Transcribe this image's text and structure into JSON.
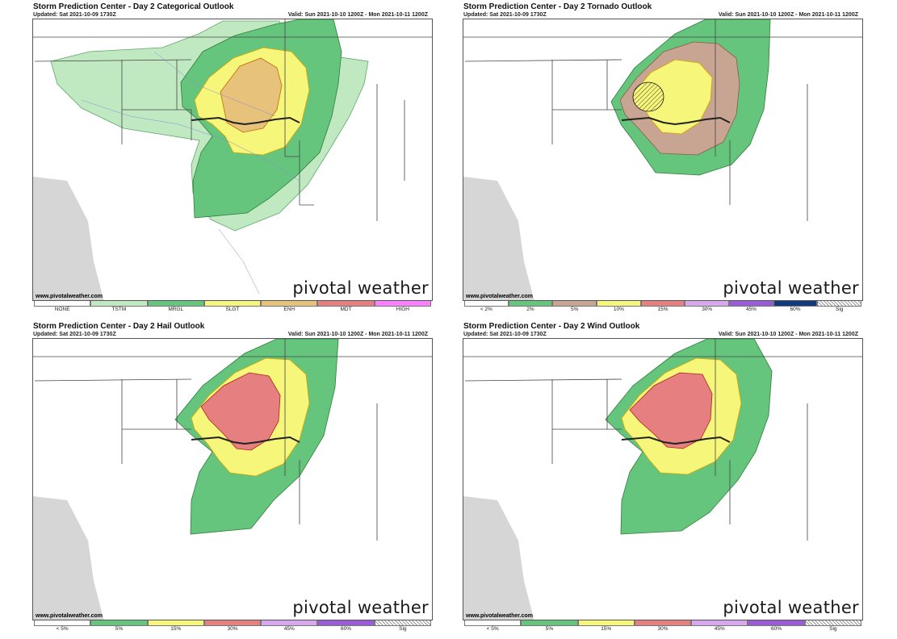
{
  "brand": "pivotal weather",
  "source": "www.pivotalweather.com",
  "panels": [
    {
      "title": "Storm Prediction Center - Day 2 Categorical Outlook",
      "updated": "Updated: Sat 2021-10-09 1730Z",
      "valid": "Valid: Sun 2021-10-10 1200Z - Mon 2021-10-11 1200Z",
      "legend": [
        {
          "label": "NONE",
          "color": "#ffffff"
        },
        {
          "label": "TSTM",
          "color": "#c1e9c1"
        },
        {
          "label": "MRGL",
          "color": "#66c57d"
        },
        {
          "label": "SLGT",
          "color": "#f6f67b"
        },
        {
          "label": "ENH",
          "color": "#e6c27a"
        },
        {
          "label": "MDT",
          "color": "#e67f7f"
        },
        {
          "label": "HIGH",
          "color": "#ff80ff"
        }
      ]
    },
    {
      "title": "Storm Prediction Center - Day 2 Tornado Outlook",
      "updated": "Updated: Sat 2021-10-09 1730Z",
      "valid": "Valid: Sun 2021-10-10 1200Z - Mon 2021-10-11 1200Z",
      "legend": [
        {
          "label": "< 2%",
          "color": "#ffffff"
        },
        {
          "label": "2%",
          "color": "#66c57d"
        },
        {
          "label": "5%",
          "color": "#c8a493"
        },
        {
          "label": "10%",
          "color": "#f6f67b"
        },
        {
          "label": "15%",
          "color": "#e67f7f"
        },
        {
          "label": "30%",
          "color": "#d8a8ee"
        },
        {
          "label": "45%",
          "color": "#9a5bd8"
        },
        {
          "label": "60%",
          "color": "#123a7f"
        },
        {
          "label": "Sig",
          "color": "hatch"
        }
      ]
    },
    {
      "title": "Storm Prediction Center - Day 2 Hail Outlook",
      "updated": "Updated: Sat 2021-10-09 1730Z",
      "valid": "Valid: Sun 2021-10-10 1200Z - Mon 2021-10-11 1200Z",
      "legend": [
        {
          "label": "< 5%",
          "color": "#ffffff"
        },
        {
          "label": "5%",
          "color": "#66c57d"
        },
        {
          "label": "15%",
          "color": "#f6f67b"
        },
        {
          "label": "30%",
          "color": "#e67f7f"
        },
        {
          "label": "45%",
          "color": "#d8a8ee"
        },
        {
          "label": "60%",
          "color": "#9a5bd8"
        },
        {
          "label": "Sig",
          "color": "hatch"
        }
      ]
    },
    {
      "title": "Storm Prediction Center - Day 2 Wind Outlook",
      "updated": "Updated: Sat 2021-10-09 1730Z",
      "valid": "Valid: Sun 2021-10-10 1200Z - Mon 2021-10-11 1200Z",
      "legend": [
        {
          "label": "< 5%",
          "color": "#ffffff"
        },
        {
          "label": "5%",
          "color": "#66c57d"
        },
        {
          "label": "15%",
          "color": "#f6f67b"
        },
        {
          "label": "30%",
          "color": "#e67f7f"
        },
        {
          "label": "45%",
          "color": "#d8a8ee"
        },
        {
          "label": "60%",
          "color": "#9a5bd8"
        },
        {
          "label": "Sig",
          "color": "hatch"
        }
      ]
    }
  ]
}
